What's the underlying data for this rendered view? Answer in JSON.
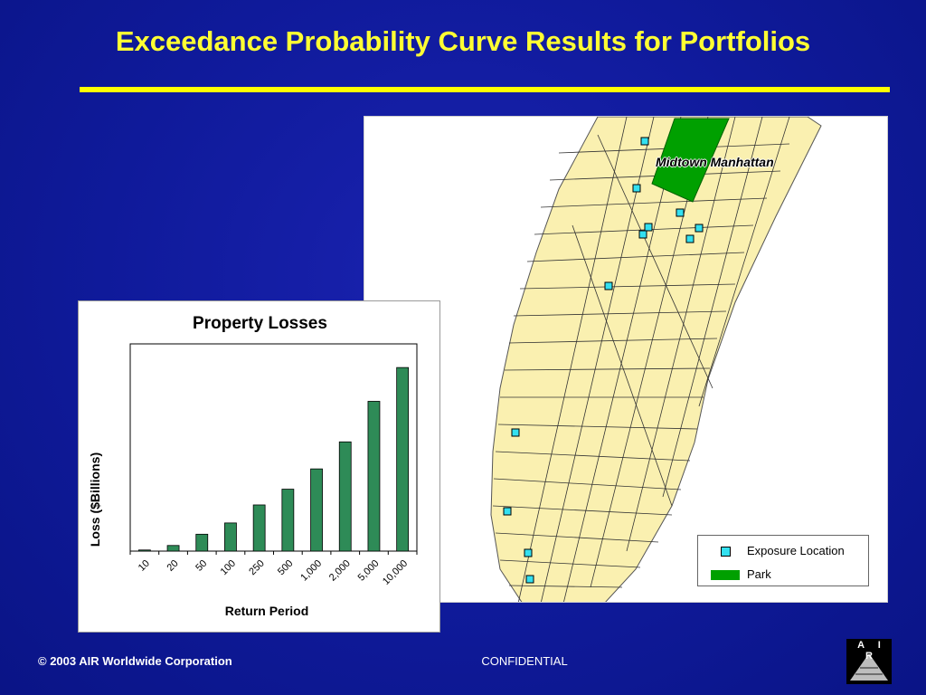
{
  "slide": {
    "title": "Exceedance Probability Curve Results for Portfolios",
    "footer_copyright": "© 2003 AIR Worldwide Corporation",
    "footer_confidential": "CONFIDENTIAL",
    "logo_text": "A I R"
  },
  "map": {
    "label": "Midtown Manhattan",
    "legend": {
      "exposure_label": "Exposure Location",
      "park_label": "Park"
    },
    "colors": {
      "land": "#faf0b0",
      "park": "#00a000",
      "exposure": "#33e0f0",
      "streets": "#333333"
    }
  },
  "chart_data": {
    "type": "bar",
    "title": "Property Losses",
    "xlabel": "Return Period",
    "ylabel": "Loss ($Billions)",
    "categories": [
      "10",
      "20",
      "50",
      "100",
      "250",
      "500",
      "1,000",
      "2,000",
      "5,000",
      "10,000"
    ],
    "values": [
      0.5,
      2.5,
      7.5,
      12.5,
      20.5,
      27.5,
      36.5,
      48.5,
      66.5,
      81.5
    ],
    "ylim": [
      0,
      92
    ],
    "bar_color": "#2e8b57",
    "grid": false
  }
}
